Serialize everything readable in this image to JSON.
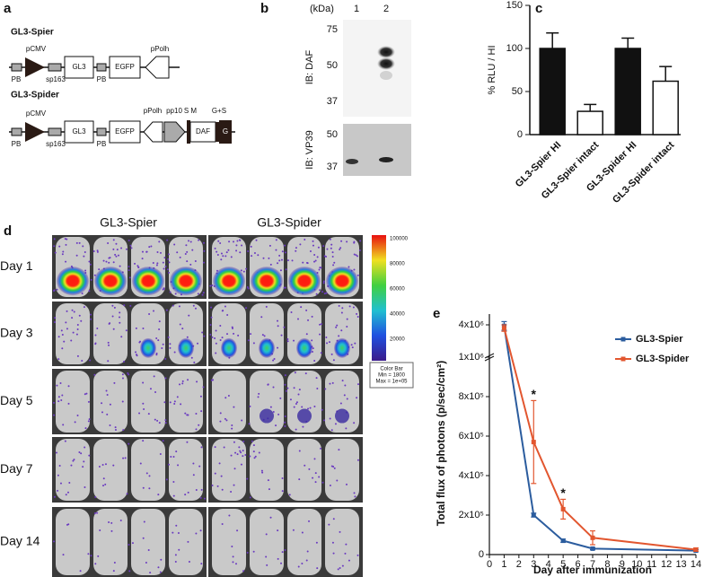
{
  "panel_a": {
    "label": "a",
    "constructs": [
      {
        "name": "GL3-Spier",
        "parts": [
          "pCMV",
          "PB",
          "sp163",
          "GL3",
          "PB",
          "EGFP",
          "pPolh"
        ]
      },
      {
        "name": "GL3-Spider",
        "parts": [
          "pCMV",
          "PB",
          "sp163",
          "GL3",
          "PB",
          "EGFP",
          "pPolh",
          "pp10",
          "S M",
          "DAF",
          "G+S",
          "G"
        ]
      }
    ]
  },
  "panel_b": {
    "label": "b",
    "unit": "(kDa)",
    "lanes": [
      "1",
      "2"
    ],
    "blots": [
      {
        "antibody": "IB: DAF",
        "markers": [
          "75",
          "50",
          "37"
        ]
      },
      {
        "antibody": "IB: VP39",
        "markers": [
          "50",
          "37"
        ]
      }
    ]
  },
  "panel_d": {
    "label": "d",
    "columns": [
      "GL3-Spier",
      "GL3-Spider"
    ],
    "rows": [
      "Day 1",
      "Day 3",
      "Day 5",
      "Day 7",
      "Day 14"
    ],
    "colorbar": {
      "ticks": [
        "100000",
        "80000",
        "60000",
        "40000",
        "20000"
      ],
      "title": "Color Bar",
      "min": "Min = 1800",
      "max": "Max = 1e+05"
    }
  },
  "chart_data": [
    {
      "type": "bar",
      "panel": "c",
      "ylabel": "% RLU / HI",
      "categories": [
        "GL3-Spier HI",
        "GL3-Spier intact",
        "GL3-Spider HI",
        "GL3-Spider intact"
      ],
      "values": [
        100,
        27,
        100,
        62
      ],
      "errors": [
        18,
        8,
        12,
        17
      ],
      "colors": [
        "#111111",
        "#ffffff",
        "#111111",
        "#ffffff"
      ],
      "ylim": [
        0,
        150
      ],
      "yticks": [
        0,
        50,
        100,
        150
      ]
    },
    {
      "type": "line",
      "panel": "e",
      "xlabel": "Day after immunization",
      "ylabel": "Total flux of photons (p/sec/cm²)",
      "x": [
        1,
        3,
        5,
        7,
        14
      ],
      "series": [
        {
          "name": "GL3-Spier",
          "color": "#2b5c9e",
          "values": [
            3900000,
            200000,
            70000,
            30000,
            20000
          ],
          "errors": [
            400000,
            10000,
            8000,
            5000,
            5000
          ]
        },
        {
          "name": "GL3-Spider",
          "color": "#e2562f",
          "values": [
            3700000,
            570000,
            230000,
            85000,
            25000
          ],
          "errors": [
            300000,
            210000,
            50000,
            35000,
            8000
          ]
        }
      ],
      "annotations": [
        {
          "text": "*",
          "x": 3
        },
        {
          "text": "*",
          "x": 5
        }
      ],
      "xlim": [
        0,
        14
      ],
      "xticks": [
        0,
        1,
        2,
        3,
        4,
        5,
        6,
        7,
        8,
        9,
        10,
        11,
        12,
        13,
        14
      ],
      "ylim": [
        0,
        5000000
      ],
      "y_break": 1000000,
      "yticks": [
        0,
        {
          "value": 200000,
          "label": "2x10⁵"
        },
        {
          "value": 400000,
          "label": "4x10⁵"
        },
        {
          "value": 600000,
          "label": "6x10⁵"
        },
        {
          "value": 800000,
          "label": "8x10⁵"
        },
        {
          "value": 1000000,
          "label": "1x10⁶"
        },
        {
          "value": 4000000,
          "label": "4x10⁶"
        }
      ],
      "legend": "upper right"
    }
  ]
}
